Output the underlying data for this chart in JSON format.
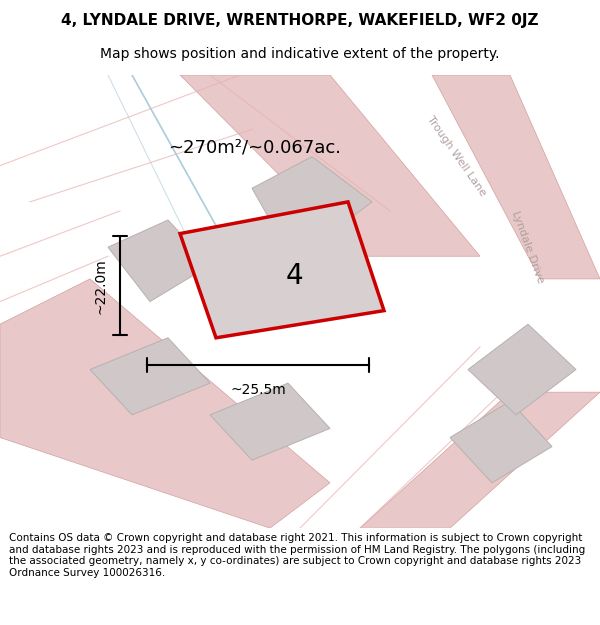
{
  "title_line1": "4, LYNDALE DRIVE, WRENTHORPE, WAKEFIELD, WF2 0JZ",
  "title_line2": "Map shows position and indicative extent of the property.",
  "footer_text": "Contains OS data © Crown copyright and database right 2021. This information is subject to Crown copyright and database rights 2023 and is reproduced with the permission of HM Land Registry. The polygons (including the associated geometry, namely x, y co-ordinates) are subject to Crown copyright and database rights 2023 Ordnance Survey 100026316.",
  "area_label": "~270m²/~0.067ac.",
  "number_label": "4",
  "dim_width": "~25.5m",
  "dim_height": "~22.0m",
  "road_label1": "Trough Well Lane",
  "road_label2": "Lyndale Drive",
  "bg_color": "#f5f0f0",
  "map_bg": "#f2ede8",
  "plot_fill": "#d8d0d0",
  "plot_outline": "#cc0000",
  "road_color": "#e8c8c8",
  "road_outline": "#d4a0a0",
  "building_fill": "#d0c8c8",
  "line_color": "#000000",
  "title_fontsize": 11,
  "subtitle_fontsize": 10,
  "footer_fontsize": 7.5,
  "road_text_color": "#b0a0a0",
  "annotation_fontsize": 13,
  "number_fontsize": 20
}
